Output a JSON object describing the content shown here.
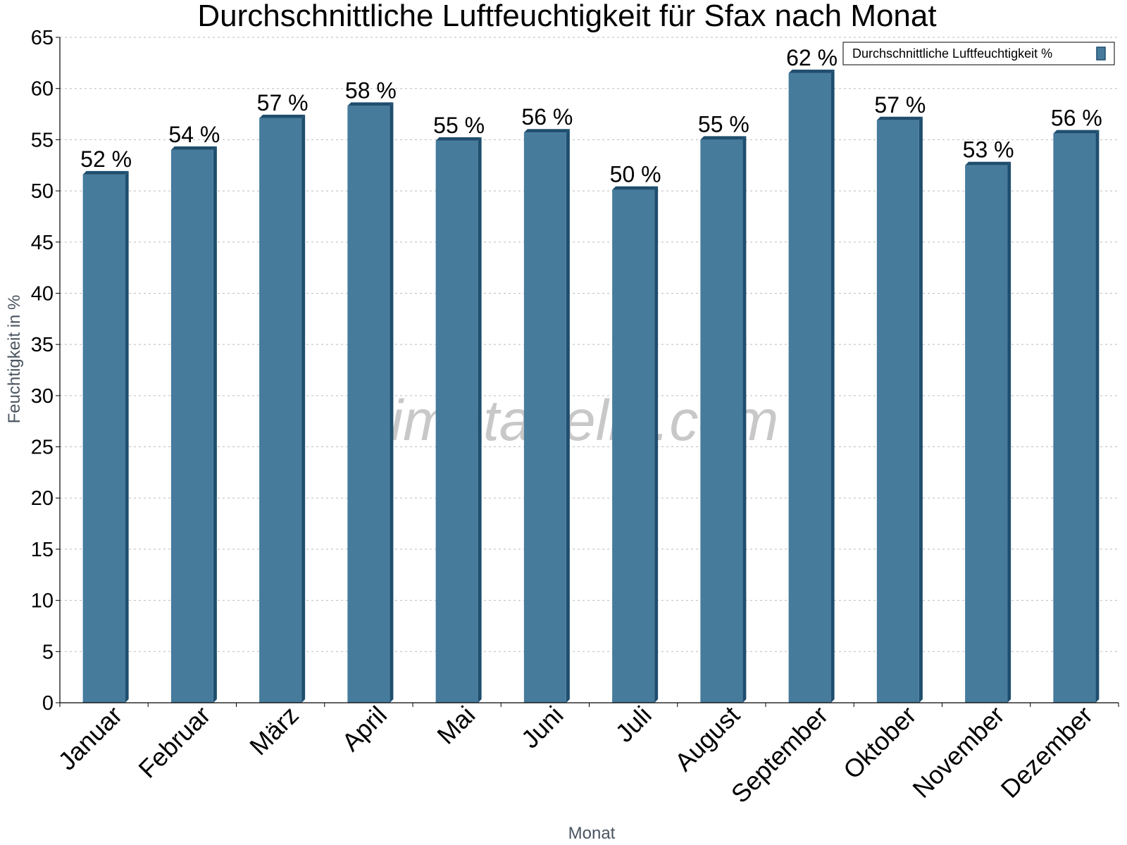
{
  "chart_data": {
    "type": "bar",
    "title": "Durchschnittliche Luftfeuchtigkeit für Sfax nach Monat",
    "xlabel": "Monat",
    "ylabel": "Feuchtigkeit in %",
    "categories": [
      "Januar",
      "Februar",
      "März",
      "April",
      "Mai",
      "Juni",
      "Juli",
      "August",
      "September",
      "Oktober",
      "November",
      "Dezember"
    ],
    "series": [
      {
        "name": "Durchschnittliche Luftfeuchtigkeit %",
        "values": [
          51.6,
          54.0,
          57.1,
          58.3,
          54.9,
          55.7,
          50.1,
          55.0,
          61.5,
          56.9,
          52.5,
          55.6
        ],
        "labels": [
          "52 %",
          "54 %",
          "57 %",
          "58 %",
          "55 %",
          "56 %",
          "50 %",
          "55 %",
          "62 %",
          "57 %",
          "53 %",
          "56 %"
        ]
      }
    ],
    "ylim": [
      0,
      65
    ],
    "yticks": [
      0,
      5,
      10,
      15,
      20,
      25,
      30,
      35,
      40,
      45,
      50,
      55,
      60,
      65
    ],
    "grid": true,
    "legend_position": "top-right",
    "bar_color": "#467b9c",
    "bar_edge_color": "#1f4e6e",
    "watermark": "klimatabelle.com"
  }
}
